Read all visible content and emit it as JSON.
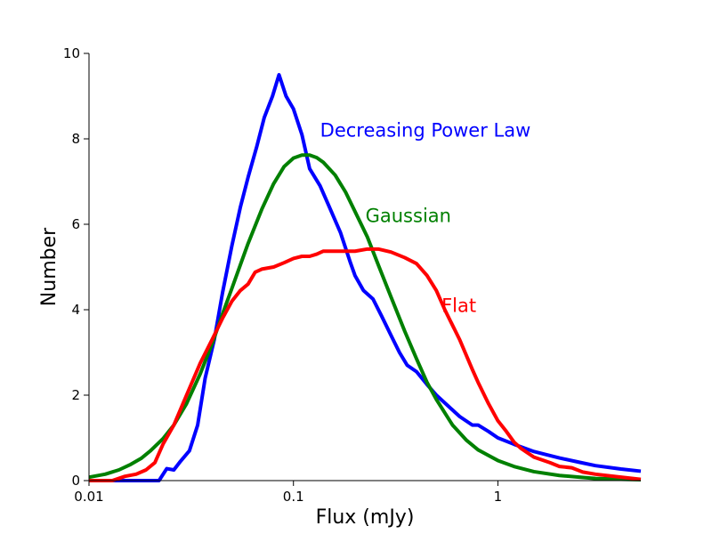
{
  "chart_data": {
    "type": "line",
    "title": "",
    "xlabel": "Flux (mJy)",
    "ylabel": "Number",
    "xscale": "log",
    "xlim": [
      0.01,
      5.0
    ],
    "ylim": [
      0,
      10
    ],
    "xticks": [
      {
        "value": 0.01,
        "label": "0.01"
      },
      {
        "value": 0.1,
        "label": "0.1"
      },
      {
        "value": 1,
        "label": "1"
      }
    ],
    "yticks": [
      {
        "value": 0,
        "label": "0"
      },
      {
        "value": 2,
        "label": "2"
      },
      {
        "value": 4,
        "label": "4"
      },
      {
        "value": 6,
        "label": "6"
      },
      {
        "value": 8,
        "label": "8"
      },
      {
        "value": 10,
        "label": "10"
      }
    ],
    "grid": false,
    "series": [
      {
        "name": "Decreasing Power Law",
        "color": "#0000ff",
        "points": [
          [
            0.01,
            0.0
          ],
          [
            0.02,
            0.0
          ],
          [
            0.022,
            0.0
          ],
          [
            0.024,
            0.28
          ],
          [
            0.026,
            0.25
          ],
          [
            0.028,
            0.45
          ],
          [
            0.031,
            0.7
          ],
          [
            0.034,
            1.3
          ],
          [
            0.037,
            2.4
          ],
          [
            0.041,
            3.3
          ],
          [
            0.045,
            4.4
          ],
          [
            0.05,
            5.5
          ],
          [
            0.055,
            6.4
          ],
          [
            0.06,
            7.1
          ],
          [
            0.066,
            7.8
          ],
          [
            0.072,
            8.5
          ],
          [
            0.079,
            9.0
          ],
          [
            0.085,
            9.5
          ],
          [
            0.092,
            9.0
          ],
          [
            0.1,
            8.7
          ],
          [
            0.11,
            8.1
          ],
          [
            0.12,
            7.3
          ],
          [
            0.135,
            6.9
          ],
          [
            0.15,
            6.4
          ],
          [
            0.17,
            5.8
          ],
          [
            0.19,
            5.1
          ],
          [
            0.2,
            4.8
          ],
          [
            0.22,
            4.45
          ],
          [
            0.245,
            4.25
          ],
          [
            0.27,
            3.85
          ],
          [
            0.3,
            3.4
          ],
          [
            0.33,
            3.0
          ],
          [
            0.36,
            2.7
          ],
          [
            0.4,
            2.55
          ],
          [
            0.45,
            2.25
          ],
          [
            0.5,
            2.0
          ],
          [
            0.57,
            1.75
          ],
          [
            0.65,
            1.5
          ],
          [
            0.75,
            1.3
          ],
          [
            0.8,
            1.3
          ],
          [
            0.9,
            1.15
          ],
          [
            1.0,
            1.0
          ],
          [
            1.2,
            0.85
          ],
          [
            1.5,
            0.68
          ],
          [
            2.0,
            0.53
          ],
          [
            2.5,
            0.43
          ],
          [
            3.0,
            0.35
          ],
          [
            4.0,
            0.27
          ],
          [
            5.0,
            0.22
          ]
        ]
      },
      {
        "name": "Gaussian",
        "color": "#008000",
        "points": [
          [
            0.01,
            0.08
          ],
          [
            0.012,
            0.15
          ],
          [
            0.014,
            0.25
          ],
          [
            0.016,
            0.38
          ],
          [
            0.018,
            0.52
          ],
          [
            0.02,
            0.7
          ],
          [
            0.023,
            0.98
          ],
          [
            0.026,
            1.3
          ],
          [
            0.03,
            1.8
          ],
          [
            0.035,
            2.5
          ],
          [
            0.04,
            3.2
          ],
          [
            0.045,
            3.9
          ],
          [
            0.05,
            4.5
          ],
          [
            0.055,
            5.05
          ],
          [
            0.06,
            5.55
          ],
          [
            0.07,
            6.35
          ],
          [
            0.08,
            6.95
          ],
          [
            0.09,
            7.35
          ],
          [
            0.1,
            7.55
          ],
          [
            0.11,
            7.62
          ],
          [
            0.12,
            7.62
          ],
          [
            0.13,
            7.56
          ],
          [
            0.14,
            7.45
          ],
          [
            0.16,
            7.15
          ],
          [
            0.18,
            6.75
          ],
          [
            0.2,
            6.3
          ],
          [
            0.23,
            5.7
          ],
          [
            0.26,
            5.05
          ],
          [
            0.3,
            4.3
          ],
          [
            0.35,
            3.5
          ],
          [
            0.4,
            2.85
          ],
          [
            0.45,
            2.3
          ],
          [
            0.5,
            1.9
          ],
          [
            0.6,
            1.3
          ],
          [
            0.7,
            0.95
          ],
          [
            0.8,
            0.72
          ],
          [
            1.0,
            0.47
          ],
          [
            1.2,
            0.33
          ],
          [
            1.5,
            0.21
          ],
          [
            2.0,
            0.12
          ],
          [
            2.5,
            0.08
          ],
          [
            3.0,
            0.05
          ],
          [
            4.0,
            0.03
          ],
          [
            5.0,
            0.02
          ]
        ]
      },
      {
        "name": "Flat",
        "color": "#ff0000",
        "points": [
          [
            0.01,
            0.0
          ],
          [
            0.013,
            0.0
          ],
          [
            0.015,
            0.1
          ],
          [
            0.017,
            0.15
          ],
          [
            0.019,
            0.25
          ],
          [
            0.021,
            0.42
          ],
          [
            0.023,
            0.85
          ],
          [
            0.026,
            1.3
          ],
          [
            0.03,
            2.0
          ],
          [
            0.035,
            2.75
          ],
          [
            0.04,
            3.3
          ],
          [
            0.045,
            3.8
          ],
          [
            0.05,
            4.2
          ],
          [
            0.055,
            4.45
          ],
          [
            0.06,
            4.6
          ],
          [
            0.065,
            4.88
          ],
          [
            0.07,
            4.95
          ],
          [
            0.08,
            5.0
          ],
          [
            0.09,
            5.1
          ],
          [
            0.1,
            5.2
          ],
          [
            0.11,
            5.25
          ],
          [
            0.12,
            5.25
          ],
          [
            0.13,
            5.3
          ],
          [
            0.14,
            5.37
          ],
          [
            0.16,
            5.37
          ],
          [
            0.18,
            5.37
          ],
          [
            0.2,
            5.37
          ],
          [
            0.23,
            5.42
          ],
          [
            0.26,
            5.42
          ],
          [
            0.3,
            5.35
          ],
          [
            0.35,
            5.22
          ],
          [
            0.4,
            5.08
          ],
          [
            0.45,
            4.8
          ],
          [
            0.5,
            4.45
          ],
          [
            0.55,
            4.0
          ],
          [
            0.65,
            3.3
          ],
          [
            0.75,
            2.6
          ],
          [
            0.8,
            2.3
          ],
          [
            0.9,
            1.8
          ],
          [
            1.0,
            1.4
          ],
          [
            1.1,
            1.15
          ],
          [
            1.2,
            0.9
          ],
          [
            1.3,
            0.75
          ],
          [
            1.5,
            0.55
          ],
          [
            1.8,
            0.42
          ],
          [
            2.0,
            0.33
          ],
          [
            2.3,
            0.3
          ],
          [
            2.6,
            0.2
          ],
          [
            3.0,
            0.15
          ],
          [
            4.0,
            0.08
          ],
          [
            5.0,
            0.03
          ]
        ]
      }
    ],
    "annotations": [
      {
        "text": "Decreasing Power Law",
        "color": "#0000ff",
        "x": 0.135,
        "y": 8.05
      },
      {
        "text": "Gaussian",
        "color": "#008000",
        "x": 0.225,
        "y": 6.05
      },
      {
        "text": "Flat",
        "color": "#ff0000",
        "x": 0.53,
        "y": 3.95
      }
    ]
  }
}
